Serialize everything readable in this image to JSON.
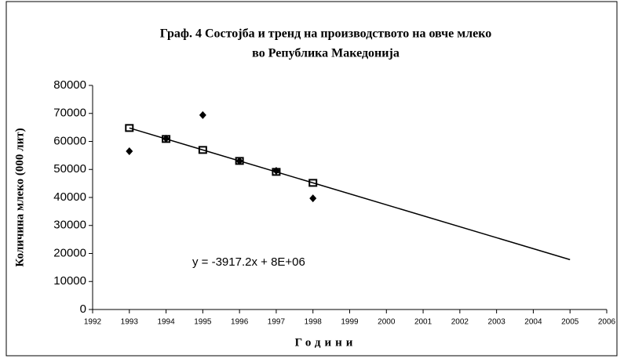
{
  "chart_data": {
    "type": "scatter",
    "title": [
      "Граф. 4 Состојба и тренд на производството на овче млеко",
      "во Република Македонија"
    ],
    "xlabel": "Години",
    "ylabel": "Количина млеко (000 лит)",
    "annotation": "y = -3917.2x + 8E+06",
    "xlim": [
      1992,
      2006
    ],
    "xticks": [
      1992,
      1993,
      1994,
      1995,
      1996,
      1997,
      1998,
      1999,
      2000,
      2001,
      2002,
      2003,
      2004,
      2005,
      2006
    ],
    "ylim": [
      0,
      80000
    ],
    "yticks": [
      0,
      10000,
      20000,
      30000,
      40000,
      50000,
      60000,
      70000,
      80000
    ],
    "series": [
      {
        "marker": "diamond",
        "color": "#000000",
        "x": [
          1993,
          1994,
          1995,
          1996,
          1997,
          1998
        ],
        "values": [
          56500,
          61000,
          69400,
          53000,
          49500,
          39700
        ]
      },
      {
        "marker": "square",
        "color": "#000000",
        "x": [
          1993,
          1994,
          1995,
          1996,
          1997,
          1998
        ],
        "values": [
          64800,
          60883,
          56966,
          53048,
          49131,
          45214
        ]
      },
      {
        "marker": "line",
        "color": "#000000",
        "x": [
          1993,
          2005
        ],
        "values": [
          64800,
          17794
        ]
      }
    ]
  }
}
